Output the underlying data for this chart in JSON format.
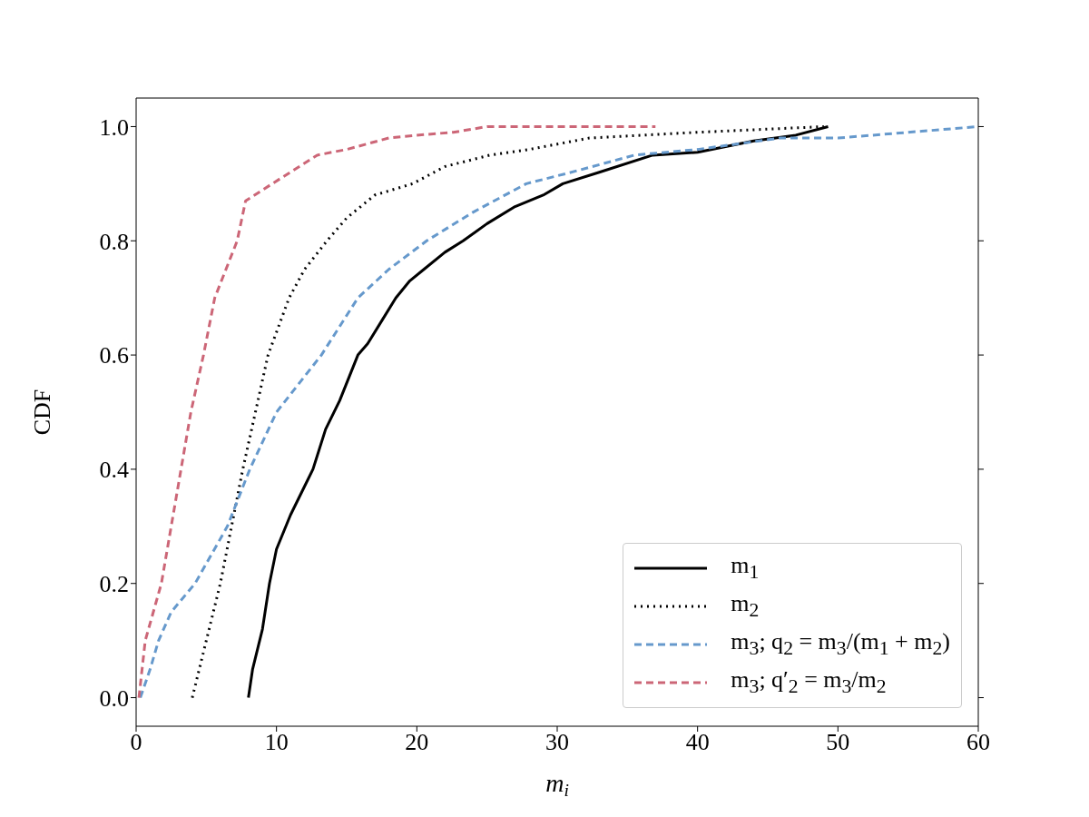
{
  "chart_data": {
    "type": "line",
    "xlabel": "m$_{i}$",
    "ylabel": "CDF",
    "xlim": [
      0,
      60
    ],
    "ylim": [
      -0.05,
      1.05
    ],
    "xticks": [
      0,
      10,
      20,
      30,
      40,
      50,
      60
    ],
    "yticks": [
      {
        "value": 0,
        "label": "0.0"
      },
      {
        "value": 0.2,
        "label": "0.2"
      },
      {
        "value": 0.4,
        "label": "0.4"
      },
      {
        "value": 0.6,
        "label": "0.6"
      },
      {
        "value": 0.8,
        "label": "0.8"
      },
      {
        "value": 1,
        "label": "1.0"
      }
    ],
    "grid": false,
    "legend": "bottom right",
    "marker": "none",
    "series": [
      {
        "name": "m$_{1}$",
        "color": "#000000",
        "line_style": "solid",
        "x": [
          8,
          8.3,
          9,
          9.5,
          10,
          11,
          12,
          12.6,
          13.5,
          14.5,
          15.8,
          16.5,
          17.5,
          18.5,
          19.5,
          20.5,
          22,
          23.3,
          25,
          27,
          29,
          30.4,
          33,
          36.8,
          40,
          44,
          47,
          49.3
        ],
        "values": [
          0,
          0.05,
          0.12,
          0.2,
          0.26,
          0.32,
          0.37,
          0.4,
          0.47,
          0.52,
          0.6,
          0.62,
          0.66,
          0.7,
          0.73,
          0.75,
          0.78,
          0.8,
          0.83,
          0.86,
          0.88,
          0.9,
          0.92,
          0.95,
          0.955,
          0.975,
          0.985,
          1.0
        ]
      },
      {
        "name": "m$_{2}$",
        "color": "#000000",
        "line_style": "dotted",
        "x": [
          4,
          5,
          6,
          7.6,
          9.4,
          10.9,
          12,
          13.6,
          15,
          17,
          19.7,
          22,
          25.2,
          28,
          32.3,
          40,
          49
        ],
        "values": [
          0,
          0.1,
          0.2,
          0.4,
          0.6,
          0.7,
          0.75,
          0.8,
          0.84,
          0.88,
          0.9,
          0.93,
          0.95,
          0.96,
          0.98,
          0.99,
          1.0
        ]
      },
      {
        "name": "m$_{3}$; q$_{2}$ = m$_{3}$/(m$_{1}$ + m$_{2}$)",
        "color": "#6699cc",
        "line_style": "dashed",
        "x": [
          0.3,
          1,
          1.6,
          2.5,
          4.2,
          6.5,
          8.1,
          10,
          13.2,
          15.8,
          18,
          20.7,
          24,
          27.8,
          31,
          35.5,
          40,
          45.9,
          50,
          55,
          60
        ],
        "values": [
          0,
          0.05,
          0.1,
          0.15,
          0.2,
          0.3,
          0.4,
          0.5,
          0.6,
          0.7,
          0.75,
          0.8,
          0.85,
          0.9,
          0.92,
          0.95,
          0.96,
          0.98,
          0.98,
          0.99,
          1.0
        ]
      },
      {
        "name": "m$_{3}$; q′$_{2}$ = m$_{3}$/m$_{2}$",
        "color": "#cc6677",
        "line_style": "dashed",
        "x": [
          0.2,
          0.65,
          1.8,
          3.2,
          3.9,
          4.8,
          5.6,
          7.2,
          7.8,
          9.7,
          12.9,
          15,
          18,
          20,
          22.6,
          25,
          30,
          37
        ],
        "values": [
          0,
          0.1,
          0.2,
          0.4,
          0.5,
          0.6,
          0.7,
          0.8,
          0.87,
          0.9,
          0.95,
          0.96,
          0.98,
          0.985,
          0.99,
          1.0,
          1.0,
          1.0
        ]
      }
    ]
  }
}
